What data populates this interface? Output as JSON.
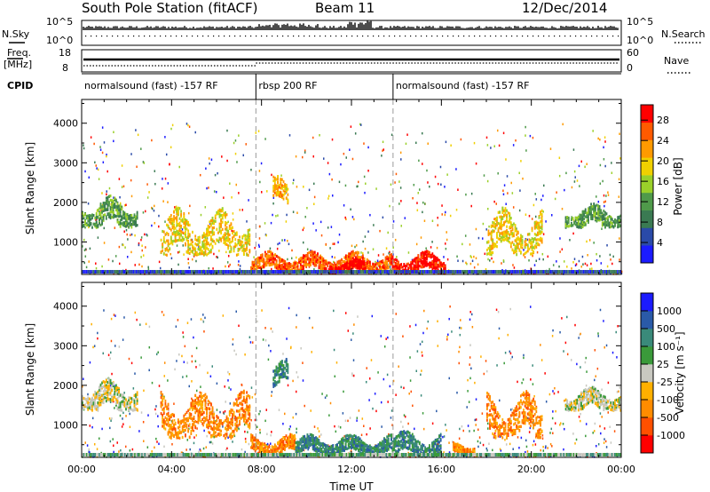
{
  "header": {
    "title": "South Pole Station (fitACF)",
    "beam": "Beam 11",
    "date": "12/Dec/2014"
  },
  "aux_panels": {
    "nsky_label": "N.Sky",
    "nsearch_label": "N.Search",
    "nsky_ticks": [
      "10^5",
      "10^0"
    ],
    "nsearch_ticks": [
      "10^5",
      "10^0"
    ],
    "freq_label_1": "Freq.",
    "freq_label_2": "[MHz]",
    "freq_ticks": [
      "18",
      "8"
    ],
    "nave_label": "Nave",
    "nave_ticks": [
      "60",
      "0"
    ],
    "cpid_label": "CPID"
  },
  "cpid_segments": [
    {
      "label": "normalsound (fast) -157 RF",
      "start_hour": 0,
      "end_hour": 7.75
    },
    {
      "label": "rbsp 200 RF",
      "start_hour": 7.75,
      "end_hour": 13.85
    },
    {
      "label": "normalsound (fast) -157 RF",
      "start_hour": 13.85,
      "end_hour": 24
    }
  ],
  "colors": {
    "power_scale": [
      "#1b1bff",
      "#2a4aa8",
      "#3a7a52",
      "#4f9a4a",
      "#9ad02a",
      "#f0d000",
      "#ff9a00",
      "#ff5a00",
      "#ff0000"
    ],
    "velocity_scale": [
      "#ff0000",
      "#ff5000",
      "#ff8c00",
      "#ffb000",
      "#c8c8c0",
      "#3a9a3a",
      "#3a8a7a",
      "#2a5aa8",
      "#1b1bff"
    ]
  },
  "chart_data": [
    {
      "type": "heatmap",
      "name_hint": "power",
      "ylabel": "Slant Range [km]",
      "xlabel": "",
      "x_range_hours": [
        0,
        24
      ],
      "ylim": [
        180,
        4600
      ],
      "yticks": [
        "1000",
        "2000",
        "3000",
        "4000"
      ],
      "ytick_values": [
        1000,
        2000,
        3000,
        4000
      ],
      "colorbar": {
        "label": "Power [dB]",
        "ticks": [
          "4",
          "8",
          "12",
          "16",
          "20",
          "24",
          "28"
        ],
        "range": [
          0,
          31
        ]
      },
      "features": [
        {
          "hour_start": 0.0,
          "hour_end": 2.5,
          "range_start": 1400,
          "range_end": 2200,
          "level": 10
        },
        {
          "hour_start": 3.5,
          "hour_end": 7.5,
          "range_start": 700,
          "range_end": 1900,
          "level": 18
        },
        {
          "hour_start": 8.5,
          "hour_end": 9.2,
          "range_start": 2000,
          "range_end": 2700,
          "level": 20
        },
        {
          "hour_start": 7.5,
          "hour_end": 13.8,
          "range_start": 300,
          "range_end": 800,
          "level": 24
        },
        {
          "hour_start": 11.0,
          "hour_end": 12.6,
          "range_start": 250,
          "range_end": 600,
          "level": 29
        },
        {
          "hour_start": 13.8,
          "hour_end": 16.2,
          "range_start": 250,
          "range_end": 800,
          "level": 28
        },
        {
          "hour_start": 18.0,
          "hour_end": 20.5,
          "range_start": 700,
          "range_end": 1900,
          "level": 18
        },
        {
          "hour_start": 21.5,
          "hour_end": 24.0,
          "range_start": 1400,
          "range_end": 2000,
          "level": 10
        }
      ]
    },
    {
      "type": "heatmap",
      "name_hint": "velocity",
      "ylabel": "Slant Range [km]",
      "xlabel": "Time UT",
      "x_range_hours": [
        0,
        24
      ],
      "ylim": [
        180,
        4600
      ],
      "yticks": [
        "1000",
        "2000",
        "3000",
        "4000"
      ],
      "ytick_values": [
        1000,
        2000,
        3000,
        4000
      ],
      "xticks": [
        "00:00",
        "04:00",
        "08:00",
        "12:00",
        "16:00",
        "20:00",
        "00:00"
      ],
      "xtick_values": [
        0,
        4,
        8,
        12,
        16,
        20,
        24
      ],
      "colorbar": {
        "label": "Velocity [m s⁻¹]",
        "ticks": [
          "1000",
          "500",
          "100",
          "25",
          "-25",
          "-100",
          "-500",
          "-1000"
        ]
      },
      "features": [
        {
          "hour_start": 0.0,
          "hour_end": 2.5,
          "range_start": 1400,
          "range_end": 2200,
          "level": 4
        },
        {
          "hour_start": 3.5,
          "hour_end": 7.5,
          "range_start": 700,
          "range_end": 1900,
          "level": 2
        },
        {
          "hour_start": 8.5,
          "hour_end": 9.2,
          "range_start": 2000,
          "range_end": 2700,
          "level": 6
        },
        {
          "hour_start": 7.5,
          "hour_end": 9.5,
          "range_start": 300,
          "range_end": 800,
          "level": 2
        },
        {
          "hour_start": 9.5,
          "hour_end": 13.8,
          "range_start": 300,
          "range_end": 800,
          "level": 6
        },
        {
          "hour_start": 13.8,
          "hour_end": 16.0,
          "range_start": 250,
          "range_end": 900,
          "level": 6
        },
        {
          "hour_start": 16.5,
          "hour_end": 17.5,
          "range_start": 300,
          "range_end": 600,
          "level": 2
        },
        {
          "hour_start": 18.0,
          "hour_end": 20.5,
          "range_start": 700,
          "range_end": 1900,
          "level": 2
        },
        {
          "hour_start": 21.5,
          "hour_end": 24.0,
          "range_start": 1400,
          "range_end": 2000,
          "level": 4
        }
      ]
    }
  ]
}
